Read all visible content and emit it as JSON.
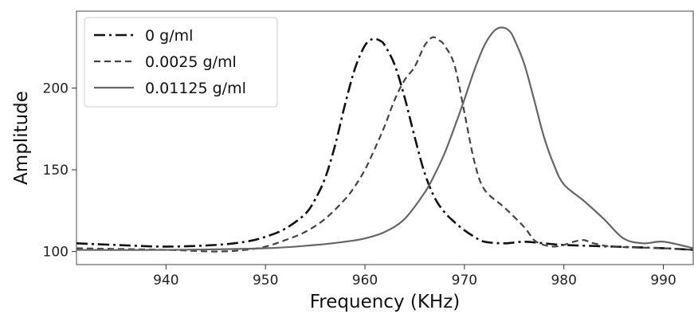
{
  "chart_data": {
    "type": "line",
    "title": "",
    "xlabel": "Frequency (KHz)",
    "ylabel": "Amplitude",
    "xlim": [
      931,
      993
    ],
    "ylim": [
      92,
      247
    ],
    "xticks": [
      940,
      950,
      960,
      970,
      980,
      990
    ],
    "yticks": [
      100,
      150,
      200
    ],
    "grid": false,
    "legend_position": "top-left",
    "series": [
      {
        "name": "0 g/ml",
        "style": "dash-dot",
        "color": "#111111",
        "x": [
          931,
          935,
          940,
          945,
          948,
          950,
          952,
          954,
          955,
          956,
          957,
          958,
          959,
          960,
          960.8,
          961.5,
          962,
          963,
          964,
          965,
          966,
          967,
          968,
          969,
          970,
          971,
          972,
          974,
          976,
          978,
          980,
          985,
          990,
          993
        ],
        "y": [
          105,
          104,
          103,
          104,
          106,
          109,
          114,
          123,
          132,
          145,
          165,
          190,
          212,
          226,
          230,
          229,
          226,
          214,
          194,
          170,
          148,
          133,
          124,
          118,
          113,
          109,
          106,
          105,
          106,
          105,
          104,
          103,
          102,
          101
        ]
      },
      {
        "name": "0.0025 g/ml",
        "style": "dashed",
        "color": "#444444",
        "x": [
          931,
          940,
          945,
          948,
          950,
          952,
          954,
          956,
          958,
          959,
          960,
          961,
          962,
          963,
          964,
          965,
          966,
          966.8,
          967.5,
          968,
          969,
          970,
          971,
          972,
          974,
          976,
          977,
          978,
          979,
          980,
          981,
          982,
          983,
          985,
          990,
          993
        ],
        "y": [
          102,
          101,
          100,
          101,
          103,
          107,
          112,
          120,
          132,
          140,
          150,
          163,
          177,
          193,
          205,
          213,
          226,
          231,
          229,
          226,
          214,
          185,
          155,
          138,
          127,
          115,
          107,
          104,
          103,
          104,
          106,
          107,
          105,
          103,
          102,
          101
        ]
      },
      {
        "name": "0.01125 g/ml",
        "style": "solid",
        "color": "#666666",
        "x": [
          931,
          940,
          950,
          955,
          958,
          960,
          962,
          964,
          966,
          967,
          968,
          969,
          970,
          971,
          972,
          973,
          973.8,
          974.5,
          975,
          976,
          977,
          978,
          979,
          980,
          982,
          984,
          986,
          988,
          990,
          993
        ],
        "y": [
          101,
          101,
          102,
          104,
          106,
          108,
          112,
          120,
          136,
          147,
          160,
          176,
          193,
          211,
          226,
          235,
          237,
          235,
          230,
          215,
          193,
          170,
          153,
          141,
          131,
          120,
          108,
          105,
          106,
          102
        ]
      }
    ]
  }
}
